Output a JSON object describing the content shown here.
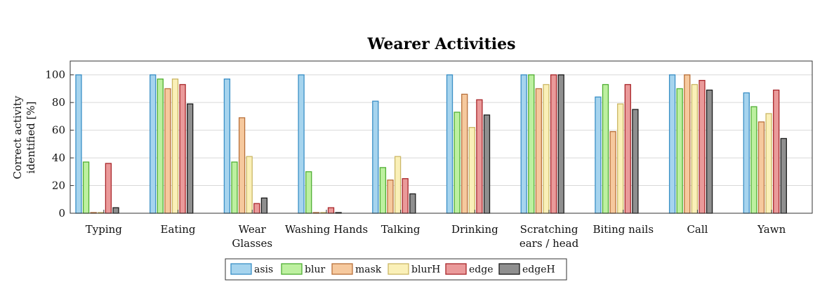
{
  "chart_data": {
    "type": "bar",
    "title": "Wearer Activities",
    "ylabel": [
      "Correct activity",
      "identified [%]"
    ],
    "xlabel": "",
    "ylim": [
      0,
      110
    ],
    "yticks": [
      0,
      20,
      40,
      60,
      80,
      100
    ],
    "grid": "horizontal",
    "legend_position": "bottom",
    "categories": [
      [
        "Typing"
      ],
      [
        "Eating"
      ],
      [
        "Wear",
        "Glasses"
      ],
      [
        "Washing Hands"
      ],
      [
        "Talking"
      ],
      [
        "Drinking"
      ],
      [
        "Scratching",
        "ears / head"
      ],
      [
        "Biting nails"
      ],
      [
        "Call"
      ],
      [
        "Yawn"
      ]
    ],
    "series": [
      {
        "name": "asis",
        "fill": "#a6d4ee",
        "stroke": "#3a8fc6",
        "values": [
          100,
          100,
          97,
          100,
          81,
          100,
          100,
          84,
          100,
          87
        ]
      },
      {
        "name": "blur",
        "fill": "#bdf0a0",
        "stroke": "#4fae32",
        "values": [
          37,
          97,
          37,
          30,
          33,
          73,
          100,
          93,
          90,
          77
        ]
      },
      {
        "name": "mask",
        "fill": "#f6c99e",
        "stroke": "#b8703a",
        "values": [
          0.5,
          90,
          69,
          0.5,
          24,
          86,
          90,
          59,
          100,
          66
        ]
      },
      {
        "name": "blurH",
        "fill": "#faf0b8",
        "stroke": "#cbb766",
        "values": [
          0.5,
          97,
          41,
          0.5,
          41,
          62,
          93,
          79,
          93,
          72
        ]
      },
      {
        "name": "edge",
        "fill": "#ea9a9a",
        "stroke": "#a8262a",
        "values": [
          36,
          93,
          7,
          4,
          25,
          82,
          100,
          93,
          96,
          89
        ]
      },
      {
        "name": "edgeH",
        "fill": "#8f8f8f",
        "stroke": "#1a1a1a",
        "values": [
          4,
          79,
          11,
          0.5,
          14,
          71,
          100,
          75,
          89,
          54
        ]
      }
    ]
  }
}
